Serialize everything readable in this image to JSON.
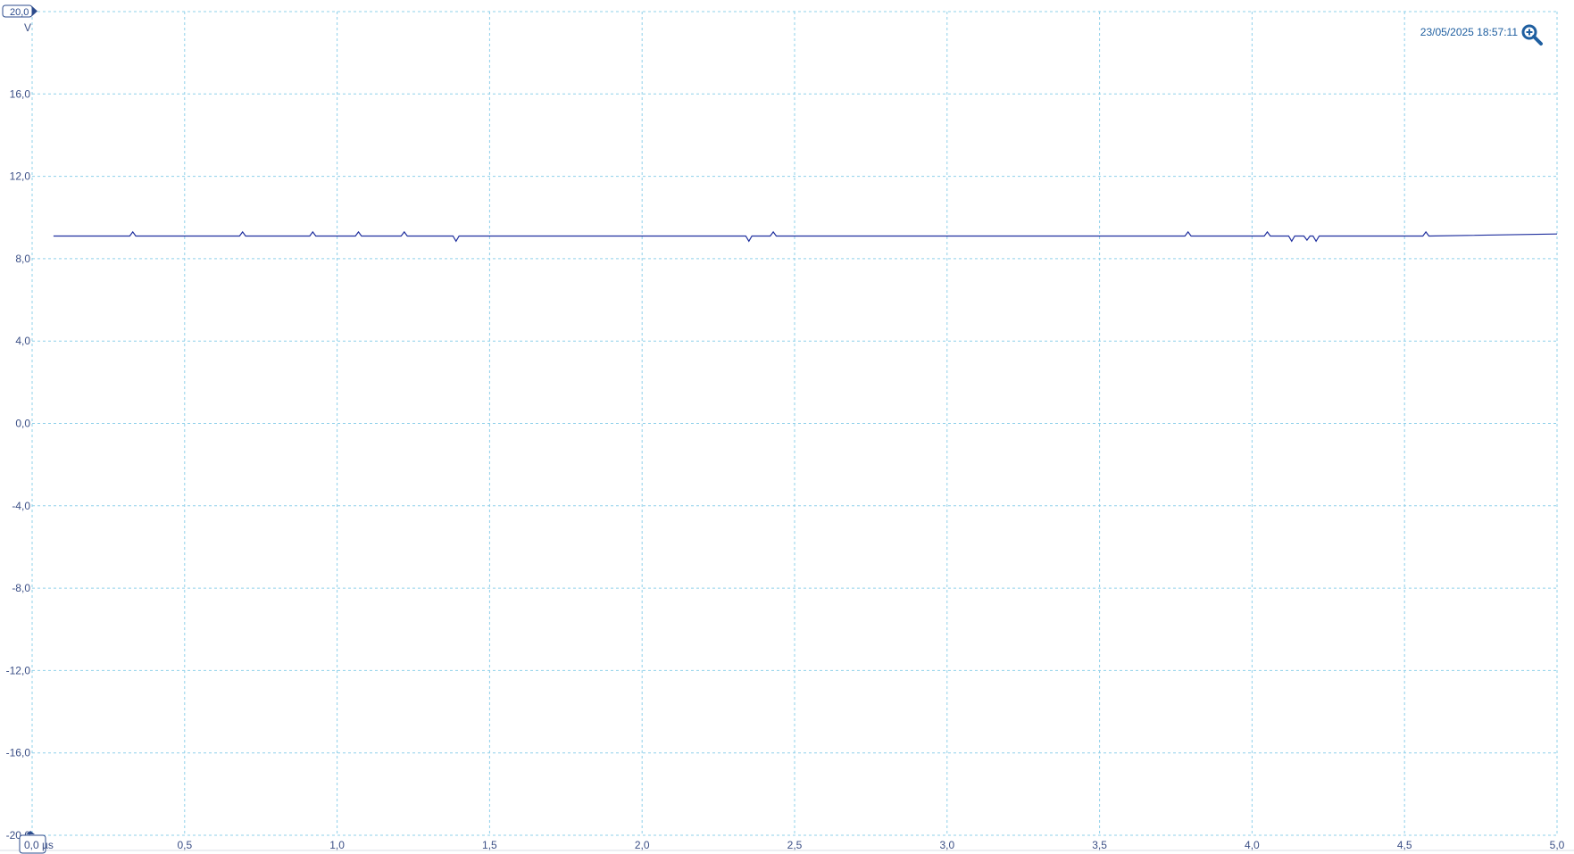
{
  "timestamp": "23/05/2025 18:57:11",
  "zoom_icon": "zoom-in-icon",
  "colors": {
    "trace": "#1f2f9e",
    "grid": "#8fd0ea",
    "axis_text": "#3b4f86",
    "accent": "#1f5fa0"
  },
  "chart_data": {
    "type": "line",
    "title": "",
    "xlabel": "",
    "ylabel": "V",
    "x_unit": "µs",
    "x_ticks": [
      "0,0",
      "0,5",
      "1,0",
      "1,5",
      "2,0",
      "2,5",
      "3,0",
      "3,5",
      "4,0",
      "4,5",
      "5,0"
    ],
    "y_ticks": [
      "20,0",
      "16,0",
      "12,0",
      "8,0",
      "4,0",
      "0,0",
      "-4,0",
      "-8,0",
      "-12,0",
      "-16,0",
      "-20,0"
    ],
    "xlim": [
      0,
      5.0
    ],
    "ylim": [
      -20,
      20
    ],
    "grid": true,
    "top_marker": "20,0",
    "bottom_marker": "0,0 µs",
    "series": [
      {
        "values_x": [
          0.07,
          0.32,
          0.33,
          0.34,
          0.68,
          0.69,
          0.7,
          0.91,
          0.92,
          0.93,
          1.06,
          1.07,
          1.08,
          1.21,
          1.22,
          1.23,
          1.38,
          1.39,
          1.4,
          2.34,
          2.35,
          2.36,
          2.42,
          2.43,
          2.44,
          3.78,
          3.79,
          3.8,
          4.04,
          4.05,
          4.06,
          4.12,
          4.13,
          4.14,
          4.17,
          4.18,
          4.19,
          4.2,
          4.21,
          4.22,
          4.56,
          4.57,
          4.58,
          5.0
        ],
        "values_y": [
          9.1,
          9.1,
          9.3,
          9.1,
          9.1,
          9.3,
          9.1,
          9.1,
          9.3,
          9.1,
          9.1,
          9.3,
          9.1,
          9.1,
          9.3,
          9.1,
          9.1,
          8.85,
          9.1,
          9.1,
          8.85,
          9.1,
          9.1,
          9.3,
          9.1,
          9.1,
          9.3,
          9.1,
          9.1,
          9.3,
          9.1,
          9.1,
          8.85,
          9.1,
          9.1,
          8.9,
          9.1,
          9.1,
          8.85,
          9.1,
          9.1,
          9.3,
          9.1,
          9.2
        ]
      }
    ]
  }
}
